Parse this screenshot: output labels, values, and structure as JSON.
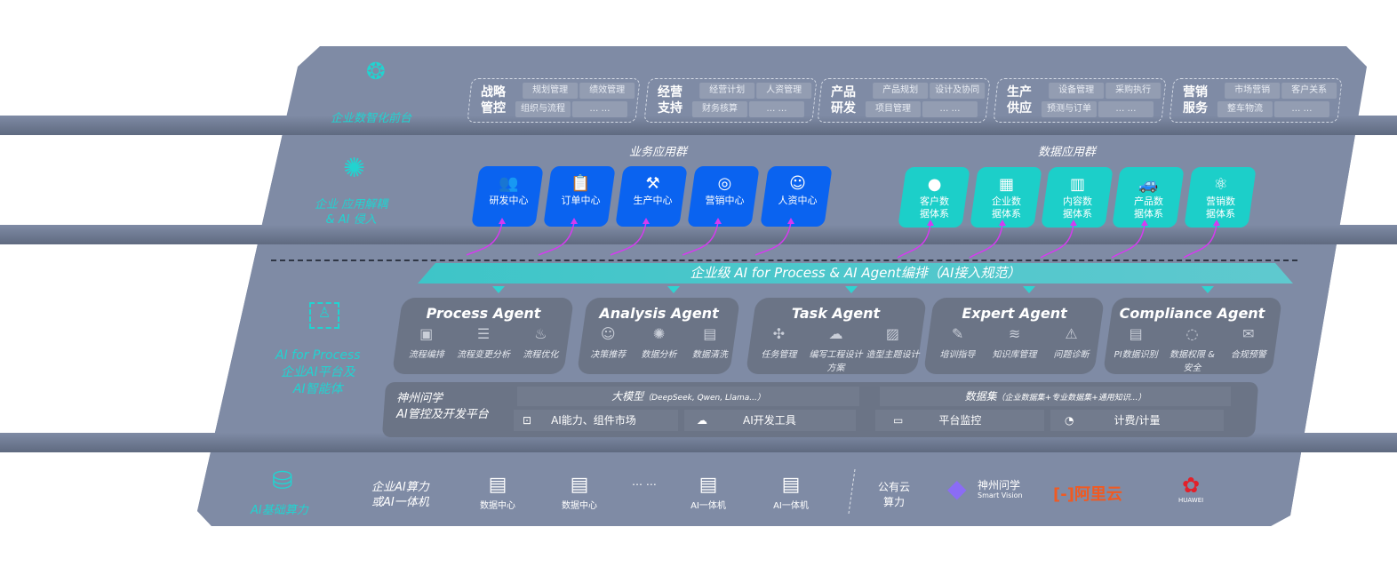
{
  "layers": {
    "frontend": {
      "label": "企业数智化前台",
      "icon": "brain-icon"
    },
    "apps": {
      "label_line1": "企业 应用解耦",
      "label_line2": "& AI 侵入",
      "icon": "molecule-icon"
    },
    "ai": {
      "label_line1": "AI for Process",
      "label_line2": "企业AI平台及",
      "label_line3": "AI智能体",
      "icon": "face-scan-icon"
    },
    "compute": {
      "label": "AI基础算力",
      "icon": "database-icon"
    }
  },
  "front_groups": [
    {
      "title": "战略管控",
      "items": [
        "规划管理",
        "绩效管理",
        "组织与流程",
        "… …"
      ]
    },
    {
      "title": "经营支持",
      "items": [
        "经营计划",
        "人资管理",
        "财务核算",
        "… …"
      ]
    },
    {
      "title": "产品研发",
      "items": [
        "产品规划",
        "设计及协同",
        "项目管理",
        "… …"
      ]
    },
    {
      "title": "生产供应",
      "items": [
        "设备管理",
        "采购执行",
        "预测与订单",
        "… …"
      ]
    },
    {
      "title": "营销服务",
      "items": [
        "市场营销",
        "客户关系",
        "整车物流",
        "… …"
      ]
    }
  ],
  "business_apps": {
    "title": "业务应用群",
    "items": [
      {
        "label": "研发中心",
        "icon": "team-icon"
      },
      {
        "label": "订单中心",
        "icon": "clipboard-icon"
      },
      {
        "label": "生产中心",
        "icon": "factory-icon"
      },
      {
        "label": "营销中心",
        "icon": "target-icon"
      },
      {
        "label": "人资中心",
        "icon": "people-icon"
      }
    ]
  },
  "data_apps": {
    "title": "数据应用群",
    "items": [
      {
        "label": "客户数据体系",
        "icon": "user-icon"
      },
      {
        "label": "企业数据体系",
        "icon": "building-icon"
      },
      {
        "label": "内容数据体系",
        "icon": "books-icon"
      },
      {
        "label": "产品数据体系",
        "icon": "car-icon"
      },
      {
        "label": "营销数据体系",
        "icon": "atom-icon"
      }
    ]
  },
  "orchestration_banner": "企业级 AI for Process & AI Agent编排（AI接入规范）",
  "agents": [
    {
      "title": "Process Agent",
      "items": [
        "流程编排",
        "流程变更分析",
        "流程优化"
      ]
    },
    {
      "title": "Analysis Agent",
      "items": [
        "决策推荐",
        "数据分析",
        "数据清洗"
      ]
    },
    {
      "title": "Task Agent",
      "items": [
        "任务管理",
        "编写工程设计方案",
        "造型主题设计"
      ]
    },
    {
      "title": "Expert Agent",
      "items": [
        "培训指导",
        "知识库管理",
        "问题诊断"
      ]
    },
    {
      "title": "Compliance Agent",
      "items": [
        "PI数据识别",
        "数据权限 & 安全",
        "合规预警"
      ]
    }
  ],
  "platform": {
    "name_line1": "神州问学",
    "name_line2": "AI管控及开发平台",
    "models_title": "大模型",
    "models_note": "（DeepSeek, Qwen, Llama...）",
    "datasets_title": "数据集",
    "datasets_note": "（企业数据集+专业数据集+通用知识...）",
    "tools": [
      "AI能力、组件市场",
      "AI开发工具",
      "平台监控",
      "计费/计量"
    ]
  },
  "compute": {
    "onprem_line1": "企业AI算力",
    "onprem_line2": "或AI一体机",
    "servers": [
      "数据中心",
      "数据中心",
      "AI一体机",
      "AI一体机"
    ],
    "ellipsis": "… …",
    "cloud_line1": "公有云",
    "cloud_line2": "算力",
    "vendors": [
      "神州问学",
      "Smart Vision",
      "阿里云",
      "HUAWEI"
    ]
  },
  "colors": {
    "panel": "#7f8ba5",
    "accent": "#22d3d0",
    "blue": "#0a63f0",
    "teal": "#1ccfc9",
    "arrow": "#d53bf0"
  }
}
